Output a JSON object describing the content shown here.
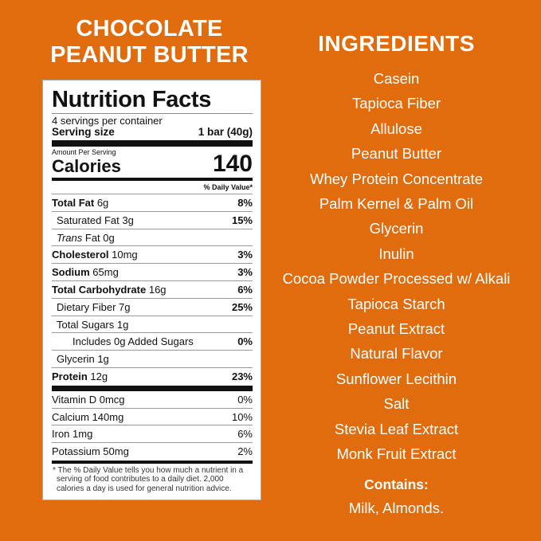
{
  "product": {
    "title_line1": "CHOCOLATE",
    "title_line2": "PEANUT BUTTER"
  },
  "nutrition": {
    "heading": "Nutrition Facts",
    "servings": "4 servings per container",
    "serving_size_label": "Serving size",
    "serving_size_value": "1 bar (40g)",
    "amount_per_serving": "Amount Per Serving",
    "calories_label": "Calories",
    "calories_value": "140",
    "daily_value_header": "% Daily Value*",
    "rows": [
      {
        "name": "Total Fat",
        "amount": "6g",
        "dv": "8%",
        "bold": true,
        "indent": 0
      },
      {
        "name": "Saturated Fat",
        "amount": "3g",
        "dv": "15%",
        "bold": false,
        "indent": 1
      },
      {
        "name": "Trans",
        "amount": "Fat 0g",
        "dv": "",
        "bold": false,
        "indent": 1,
        "italic": true
      },
      {
        "name": "Cholesterol",
        "amount": "10mg",
        "dv": "3%",
        "bold": true,
        "indent": 0
      },
      {
        "name": "Sodium",
        "amount": "65mg",
        "dv": "3%",
        "bold": true,
        "indent": 0
      },
      {
        "name": "Total Carbohydrate",
        "amount": "16g",
        "dv": "6%",
        "bold": true,
        "indent": 0
      },
      {
        "name": "Dietary Fiber",
        "amount": "7g",
        "dv": "25%",
        "bold": false,
        "indent": 1
      },
      {
        "name": "Total Sugars",
        "amount": "1g",
        "dv": "",
        "bold": false,
        "indent": 1
      },
      {
        "name": "Includes 0g Added Sugars",
        "amount": "",
        "dv": "0%",
        "bold": false,
        "indent": 2
      },
      {
        "name": "Glycerin",
        "amount": " 1g",
        "dv": "",
        "bold": false,
        "indent": 1
      },
      {
        "name": "Protein",
        "amount": "12g",
        "dv": "23%",
        "bold": true,
        "indent": 0
      }
    ],
    "vitamins": [
      {
        "name": "Vitamin D 0mcg",
        "dv": "0%"
      },
      {
        "name": "Calcium 140mg",
        "dv": "10%"
      },
      {
        "name": "Iron 1mg",
        "dv": "6%"
      },
      {
        "name": "Potassium 50mg",
        "dv": "2%"
      }
    ],
    "footnote": "* The % Daily Value tells you how much a nutrient in a serving of food contributes to a daily diet. 2,000 calories a day is used for general nutrition advice."
  },
  "ingredients": {
    "heading": "INGREDIENTS",
    "items": [
      "Casein",
      "Tapioca Fiber",
      "Allulose",
      "Peanut Butter",
      "Whey Protein Concentrate",
      "Palm Kernel & Palm Oil",
      "Glycerin",
      "Inulin",
      "Cocoa Powder Processed w/ Alkali",
      "Tapioca Starch",
      "Peanut Extract",
      "Natural Flavor",
      "Sunflower Lecithin",
      "Salt",
      "Stevia Leaf Extract",
      "Monk Fruit Extract"
    ],
    "contains_label": "Contains:",
    "contains_value": "Milk, Almonds."
  },
  "colors": {
    "background": "#e06c0e",
    "label": "#ffffff",
    "text": "#111111"
  }
}
